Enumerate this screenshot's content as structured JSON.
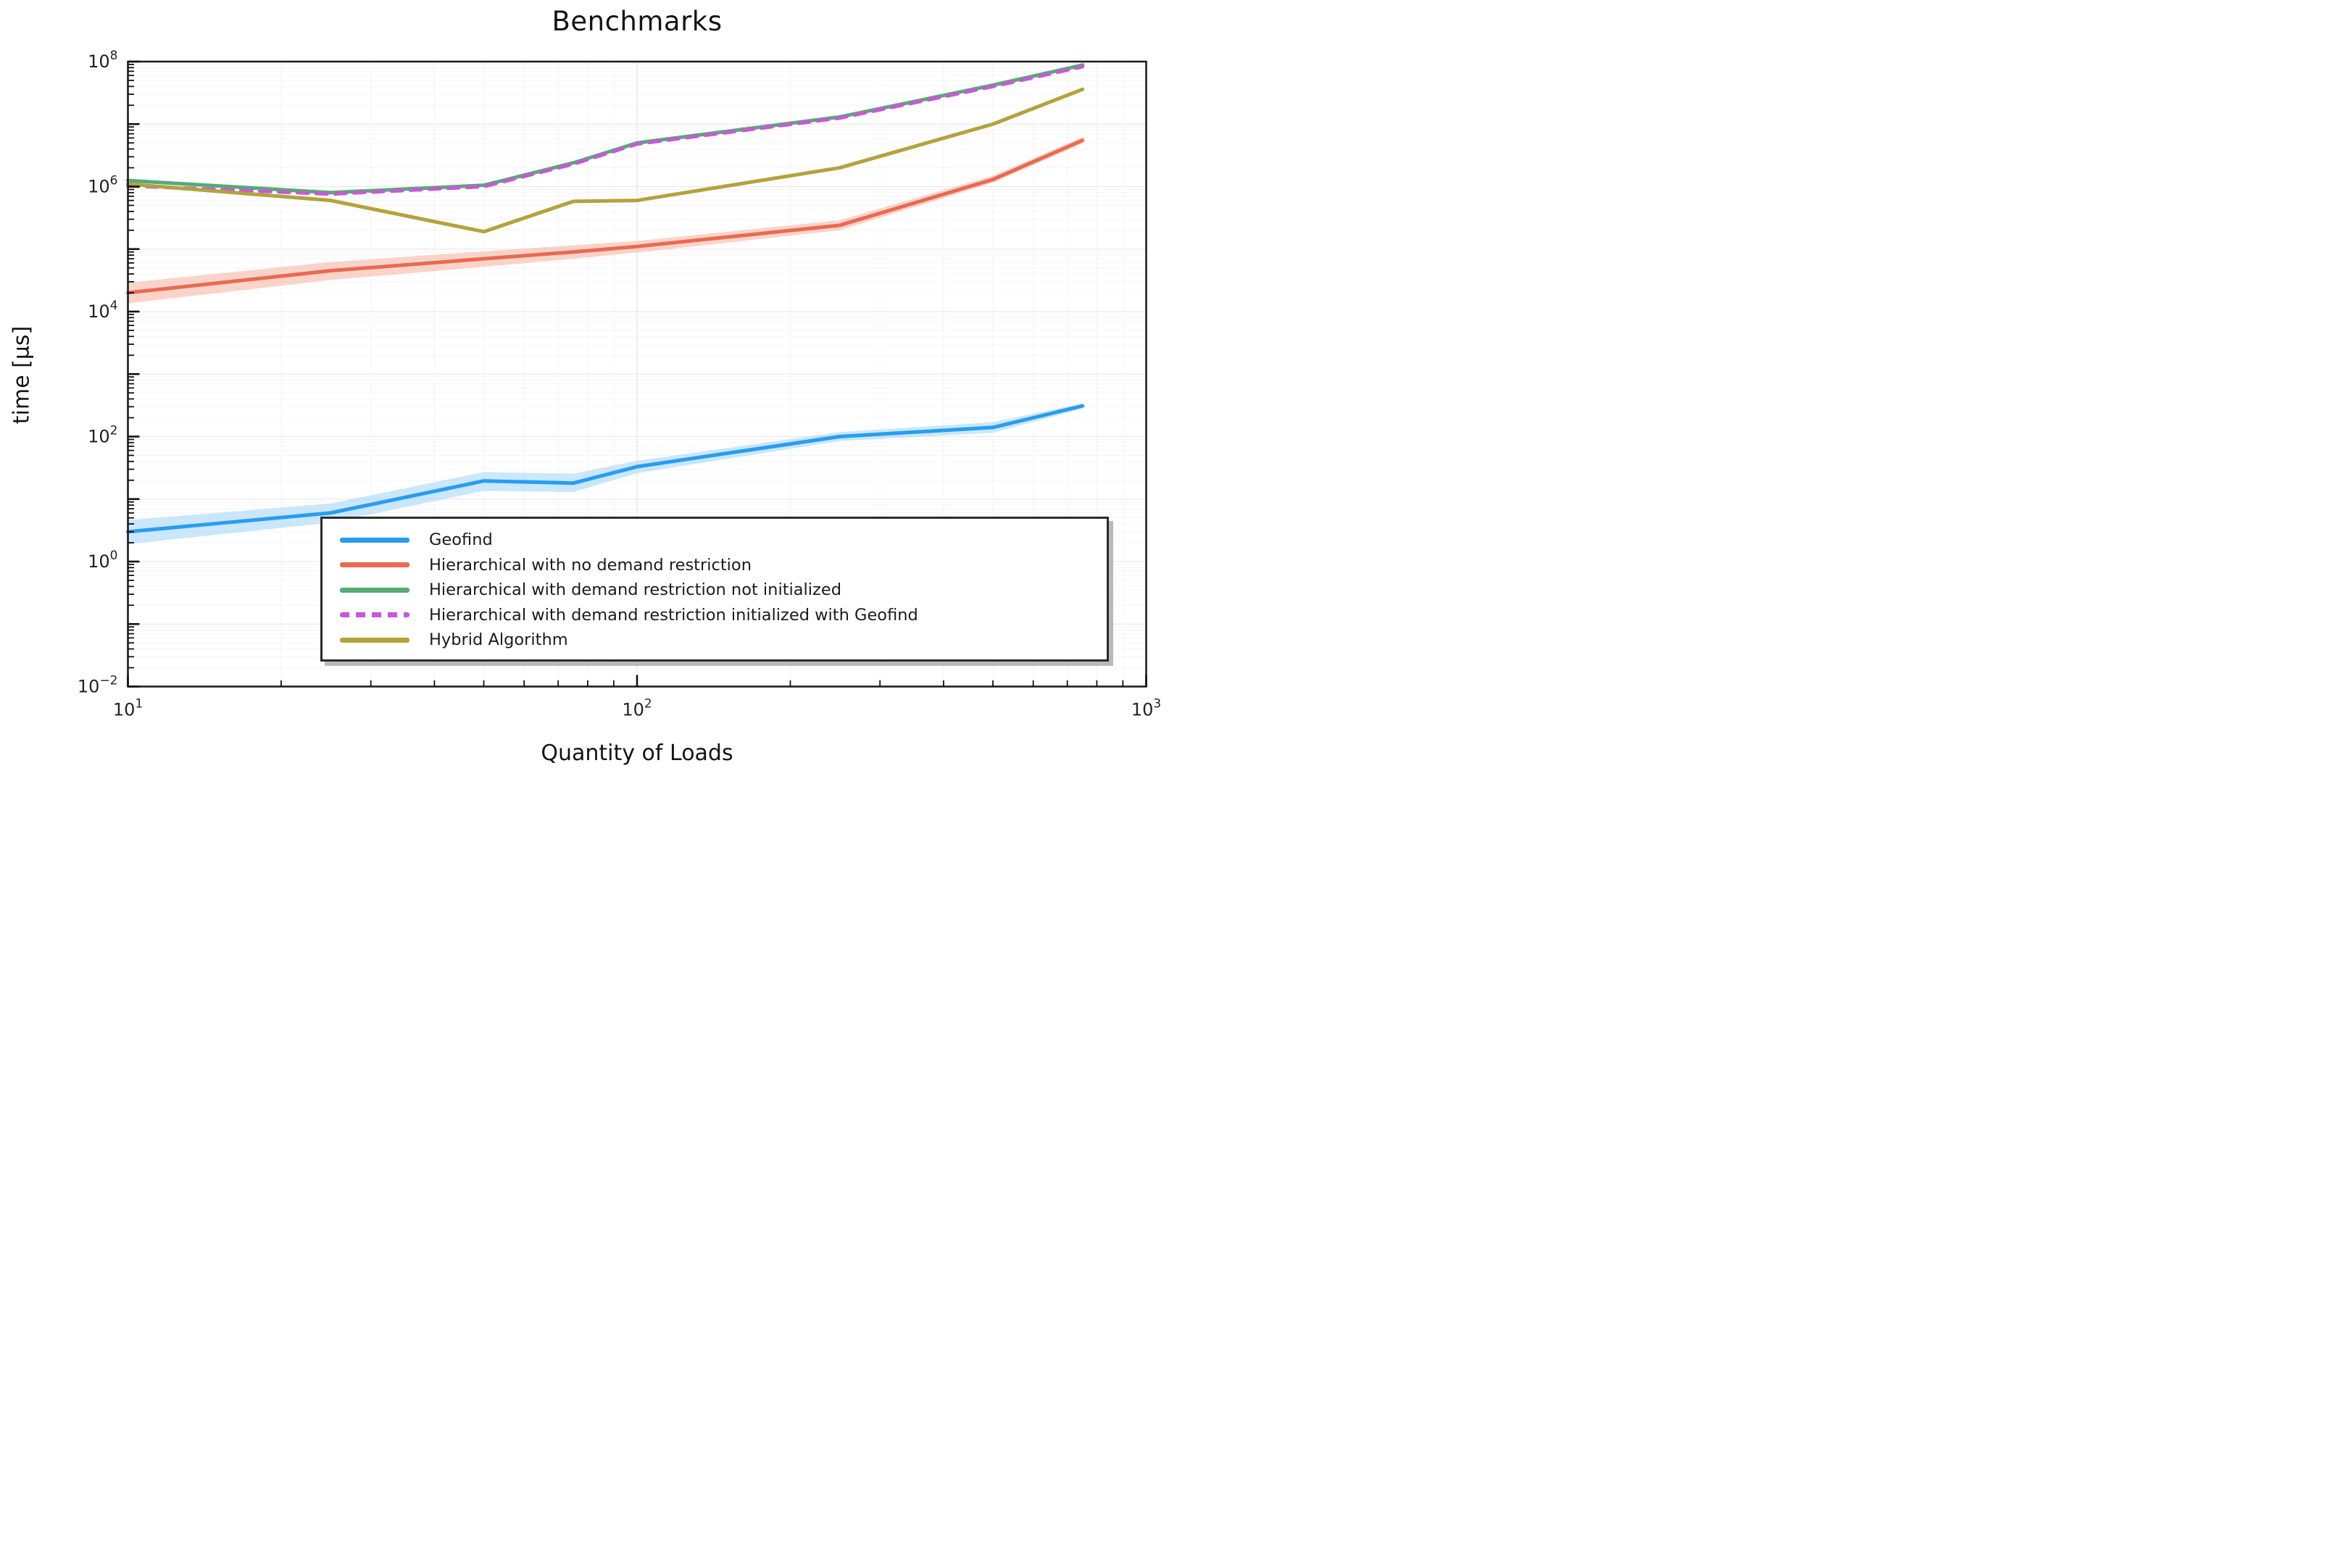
{
  "chart_data": {
    "type": "line",
    "title": "Benchmarks",
    "xlabel": "Quantity of Loads",
    "ylabel": "time [μs]",
    "x_scale": "log",
    "y_scale": "log",
    "xlim": [
      10,
      1000
    ],
    "ylim": [
      0.01,
      100000000
    ],
    "x_tick_exponents": [
      1,
      2,
      3
    ],
    "y_tick_exponents": [
      8,
      6,
      4,
      2,
      0,
      -2
    ],
    "grid": "on",
    "legend_position": "bottom-center-boxed",
    "x": [
      10,
      25,
      50,
      75,
      100,
      250,
      500,
      750
    ],
    "series": [
      {
        "name": "Geofind",
        "color": "#279df0",
        "style": "solid",
        "values": [
          3.0,
          6.0,
          19.5,
          18.0,
          33,
          100,
          140,
          310
        ],
        "band_low": [
          1.9,
          4.2,
          13.5,
          13.0,
          26,
          85,
          115,
          280
        ],
        "band_high": [
          4.6,
          8.5,
          27.0,
          25.5,
          41,
          118,
          170,
          340
        ],
        "band_color": "#9ed4f9"
      },
      {
        "name": "Hierarchical with no demand restriction",
        "color": "#e96a50",
        "style": "solid",
        "values": [
          20000,
          45000,
          70000,
          90000,
          110000,
          240000,
          1300000,
          5500000
        ],
        "band_low": [
          13500,
          32000,
          52000,
          70000,
          88000,
          200000,
          1150000,
          4900000
        ],
        "band_high": [
          29000,
          62000,
          92000,
          115000,
          135000,
          290000,
          1500000,
          6200000
        ],
        "band_color": "#f5b09e"
      },
      {
        "name": "Hierarchical with demand restriction not initialized",
        "color": "#55ab76",
        "style": "solid",
        "values": [
          1250000,
          800000,
          1050000,
          2400000,
          5000000,
          13000000,
          42000000,
          88000000
        ]
      },
      {
        "name": "Hierarchical with demand restriction initialized with Geofind",
        "color": "#c35bd3",
        "style": "dashed",
        "values": [
          1030000,
          760000,
          1000000,
          2300000,
          4800000,
          12500000,
          40000000,
          83000000
        ]
      },
      {
        "name": "Hybrid Algorithm",
        "color": "#b4a23c",
        "style": "solid",
        "values": [
          1100000,
          600000,
          190000,
          580000,
          600000,
          2000000,
          10000000,
          36000000
        ]
      }
    ]
  }
}
